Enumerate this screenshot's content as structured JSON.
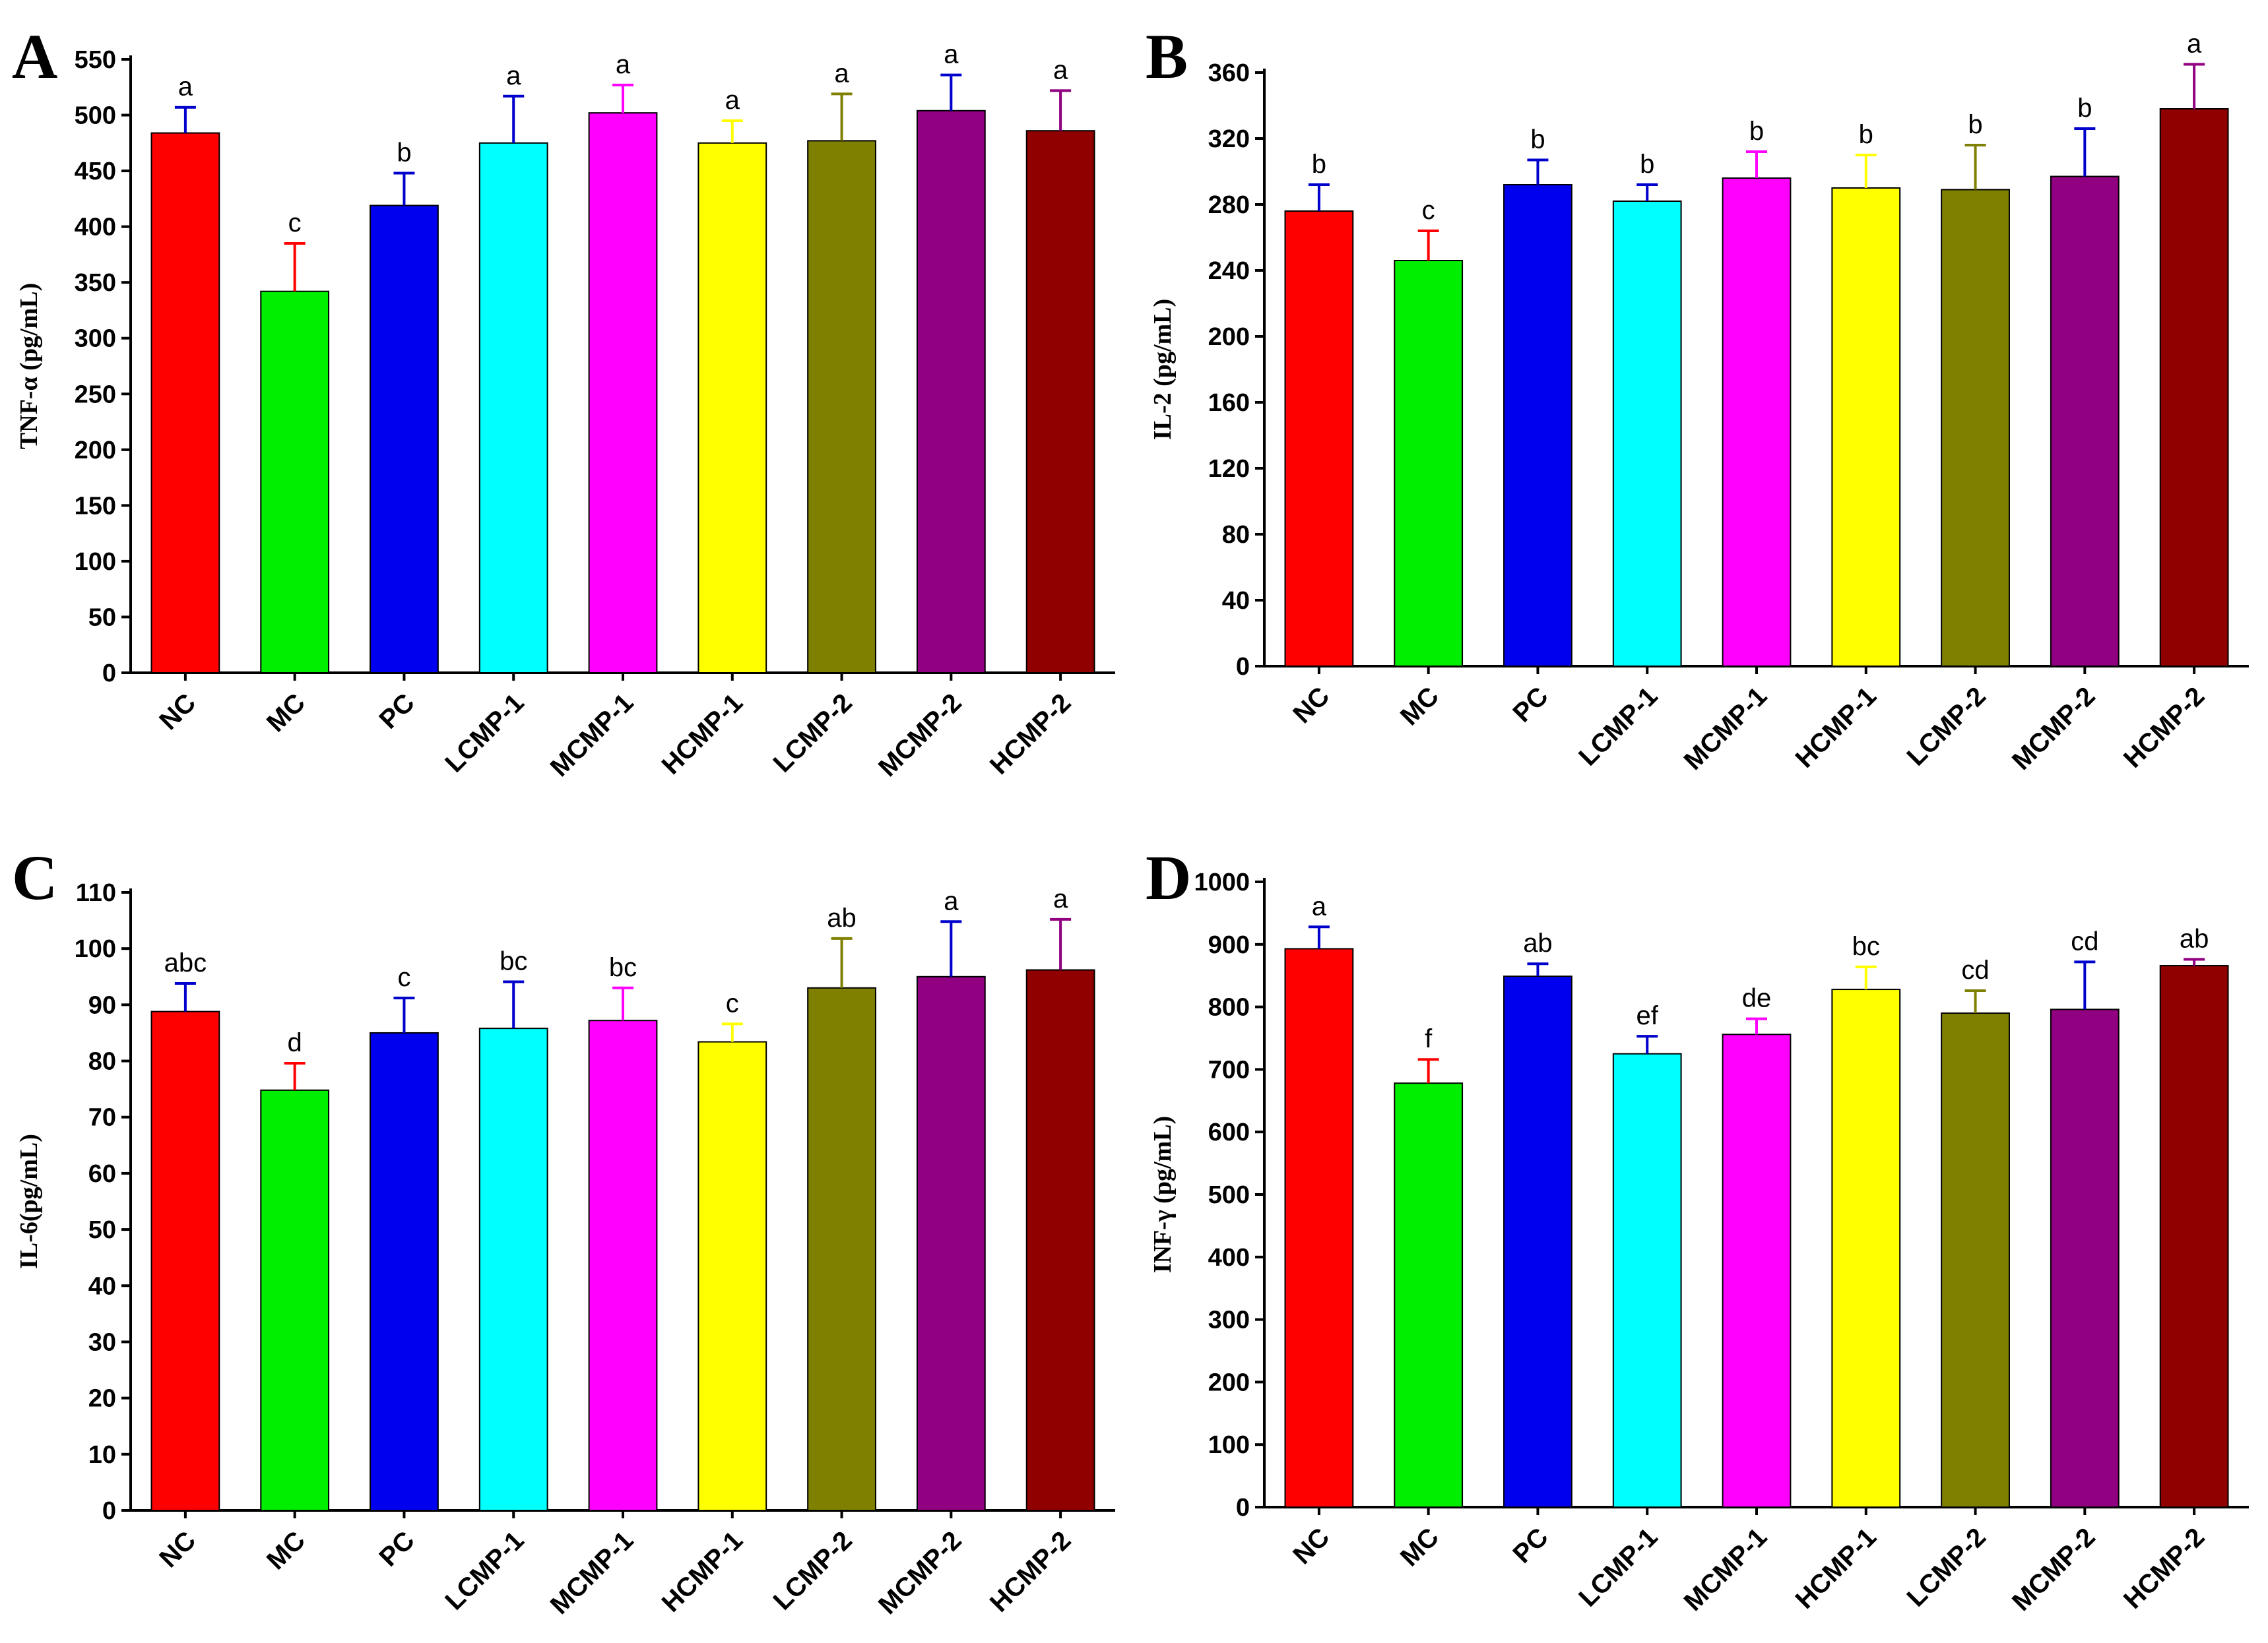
{
  "chart_data": [
    {
      "panel": "A",
      "type": "bar",
      "ylabel": "TNF-α (pg/mL)",
      "ylim": [
        0,
        550
      ],
      "yticks": [
        0,
        50,
        100,
        150,
        200,
        250,
        300,
        350,
        400,
        450,
        500,
        550
      ],
      "categories": [
        "NC",
        "MC",
        "PC",
        "LCMP-1",
        "MCMP-1",
        "HCMP-1",
        "LCMP-2",
        "MCMP-2",
        "HCMP-2"
      ],
      "values": [
        484,
        342,
        419,
        475,
        502,
        475,
        477,
        504,
        486
      ],
      "errors": [
        23,
        43,
        29,
        42,
        25,
        20,
        42,
        32,
        36
      ],
      "letters": [
        "a",
        "c",
        "b",
        "a",
        "a",
        "a",
        "a",
        "a",
        "a"
      ]
    },
    {
      "panel": "B",
      "type": "bar",
      "ylabel": "IL-2 (pg/mL)",
      "ylim": [
        0,
        370
      ],
      "yticks": [
        0,
        40,
        80,
        120,
        160,
        200,
        240,
        280,
        320,
        360
      ],
      "categories": [
        "NC",
        "MC",
        "PC",
        "LCMP-1",
        "MCMP-1",
        "HCMP-1",
        "LCMP-2",
        "MCMP-2",
        "HCMP-2"
      ],
      "values": [
        276,
        246,
        292,
        282,
        296,
        290,
        289,
        297,
        338
      ],
      "errors": [
        16,
        18,
        15,
        10,
        16,
        20,
        27,
        29,
        27
      ],
      "letters": [
        "b",
        "c",
        "b",
        "b",
        "b",
        "b",
        "b",
        "b",
        "a"
      ]
    },
    {
      "panel": "C",
      "type": "bar",
      "ylabel": "IL-6(pg/mL)",
      "ylim": [
        0,
        110
      ],
      "yticks": [
        0,
        10,
        20,
        30,
        40,
        50,
        60,
        70,
        80,
        90,
        100,
        110
      ],
      "categories": [
        "NC",
        "MC",
        "PC",
        "LCMP-1",
        "MCMP-1",
        "HCMP-1",
        "LCMP-2",
        "MCMP-2",
        "HCMP-2"
      ],
      "values": [
        88.8,
        74.8,
        85,
        85.8,
        87.2,
        83.4,
        93,
        95,
        96.2
      ],
      "errors": [
        5,
        4.8,
        6.2,
        8.3,
        5.8,
        3.2,
        8.8,
        9.8,
        9
      ],
      "letters": [
        "abc",
        "d",
        "c",
        "bc",
        "bc",
        "c",
        "ab",
        "a",
        "a"
      ]
    },
    {
      "panel": "D",
      "type": "bar",
      "ylabel": "INF-γ (pg/mL)",
      "ylim": [
        0,
        1000
      ],
      "yticks": [
        0,
        100,
        200,
        300,
        400,
        500,
        600,
        700,
        800,
        900,
        1000
      ],
      "categories": [
        "NC",
        "MC",
        "PC",
        "LCMP-1",
        "MCMP-1",
        "HCMP-1",
        "LCMP-2",
        "MCMP-2",
        "HCMP-2"
      ],
      "values": [
        893,
        678,
        849,
        725,
        756,
        828,
        790,
        796,
        866
      ],
      "errors": [
        35,
        38,
        20,
        28,
        25,
        36,
        36,
        76,
        10
      ],
      "letters": [
        "a",
        "f",
        "ab",
        "ef",
        "de",
        "bc",
        "cd",
        "cd",
        "ab"
      ]
    }
  ],
  "bar_colors": [
    "#ff0000",
    "#00ee00",
    "#0000ee",
    "#00ffff",
    "#ff00ff",
    "#ffff00",
    "#808000",
    "#900080",
    "#900000"
  ],
  "error_colors": [
    "#0000cc",
    "#ff0000",
    "#0000cc",
    "#0000cc",
    "#ff00ff",
    "#ffff00",
    "#808000",
    "#0000cc",
    "#900080"
  ]
}
